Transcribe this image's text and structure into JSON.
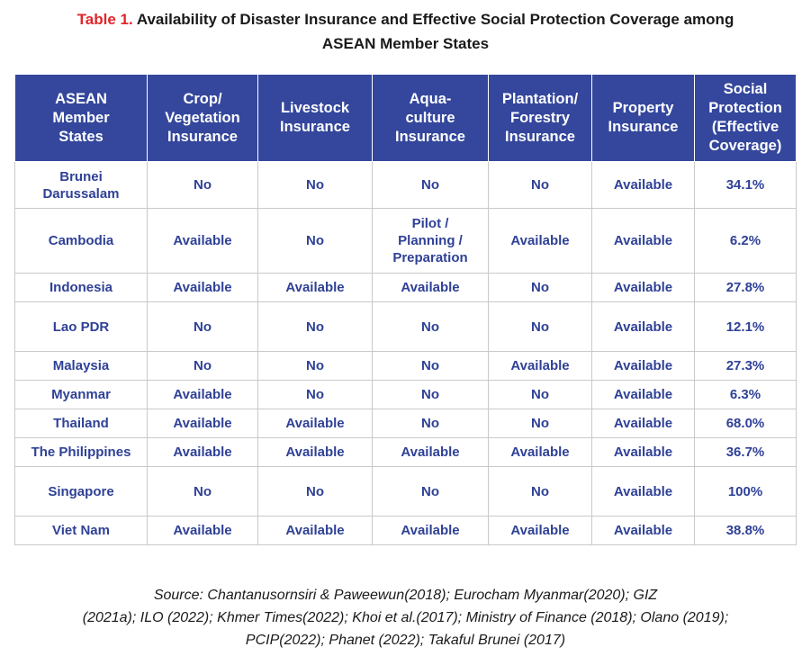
{
  "caption": {
    "label": "Table 1.",
    "line1": "Availability of Disaster Insurance and Effective Social Protection Coverage among",
    "line2": "ASEAN Member States"
  },
  "table": {
    "headers": [
      [
        "ASEAN",
        "Member",
        "States"
      ],
      [
        "Crop/",
        "Vegetation",
        "Insurance"
      ],
      [
        "Livestock",
        "Insurance"
      ],
      [
        "Aqua-",
        "culture",
        "Insurance"
      ],
      [
        "Plantation/",
        "Forestry",
        "Insurance"
      ],
      [
        "Property",
        "Insurance"
      ],
      [
        "Social",
        "Protection",
        "(Effective",
        "Coverage)"
      ]
    ],
    "rows": [
      [
        [
          "Brunei",
          "Darussalam"
        ],
        [
          "No"
        ],
        [
          "No"
        ],
        [
          "No"
        ],
        [
          "No"
        ],
        [
          "Available"
        ],
        [
          "34.1%"
        ]
      ],
      [
        [
          "Cambodia"
        ],
        [
          "Available"
        ],
        [
          "No"
        ],
        [
          "Pilot /",
          "Planning /",
          "Preparation"
        ],
        [
          "Available"
        ],
        [
          "Available"
        ],
        [
          "6.2%"
        ]
      ],
      [
        [
          "Indonesia"
        ],
        [
          "Available"
        ],
        [
          "Available"
        ],
        [
          "Available"
        ],
        [
          "No"
        ],
        [
          "Available"
        ],
        [
          "27.8%"
        ]
      ],
      [
        [
          "Lao PDR"
        ],
        [
          "No"
        ],
        [
          "No"
        ],
        [
          "No"
        ],
        [
          "No"
        ],
        [
          "Available"
        ],
        [
          "12.1%"
        ]
      ],
      [
        [
          "Malaysia"
        ],
        [
          "No"
        ],
        [
          "No"
        ],
        [
          "No"
        ],
        [
          "Available"
        ],
        [
          "Available"
        ],
        [
          "27.3%"
        ]
      ],
      [
        [
          "Myanmar"
        ],
        [
          "Available"
        ],
        [
          "No"
        ],
        [
          "No"
        ],
        [
          "No"
        ],
        [
          "Available"
        ],
        [
          "6.3%"
        ]
      ],
      [
        [
          "Thailand"
        ],
        [
          "Available"
        ],
        [
          "Available"
        ],
        [
          "No"
        ],
        [
          "No"
        ],
        [
          "Available"
        ],
        [
          "68.0%"
        ]
      ],
      [
        [
          "The Philippines"
        ],
        [
          "Available"
        ],
        [
          "Available"
        ],
        [
          "Available"
        ],
        [
          "Available"
        ],
        [
          "Available"
        ],
        [
          "36.7%"
        ]
      ],
      [
        [
          "Singapore"
        ],
        [
          "No"
        ],
        [
          "No"
        ],
        [
          "No"
        ],
        [
          "No"
        ],
        [
          "Available"
        ],
        [
          "100%"
        ]
      ],
      [
        [
          "Viet Nam"
        ],
        [
          "Available"
        ],
        [
          "Available"
        ],
        [
          "Available"
        ],
        [
          "Available"
        ],
        [
          "Available"
        ],
        [
          "38.8%"
        ]
      ]
    ]
  },
  "source": {
    "line1": "Source: Chantanusornsiri & Paweewun(2018); Eurocham Myanmar(2020); GIZ",
    "line2": "(2021a); ILO (2022); Khmer Times(2022); Khoi et al.(2017); Ministry of Finance (2018); Olano (2019);",
    "line3": "PCIP(2022); Phanet (2022); Takaful Brunei (2017)"
  }
}
